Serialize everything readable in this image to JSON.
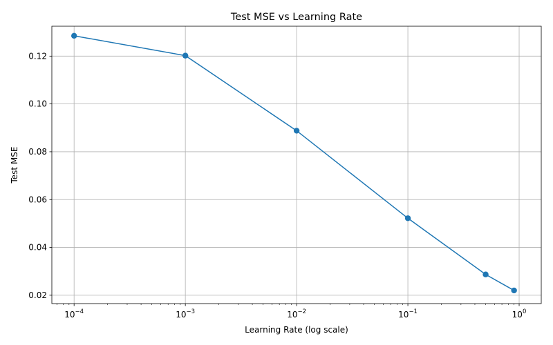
{
  "chart_data": {
    "type": "line",
    "title": "Test MSE vs Learning Rate",
    "xlabel": "Learning Rate (log scale)",
    "ylabel": "Test MSE",
    "xscale": "log",
    "xlim": [
      6.31e-05,
      1.58
    ],
    "ylim": [
      0.0165,
      0.1325
    ],
    "grid": true,
    "line_color": "#1f77b4",
    "marker": "circle",
    "x_ticks": [
      {
        "value": 0.0001,
        "base": "10",
        "exp": "−4"
      },
      {
        "value": 0.001,
        "base": "10",
        "exp": "−3"
      },
      {
        "value": 0.01,
        "base": "10",
        "exp": "−2"
      },
      {
        "value": 0.1,
        "base": "10",
        "exp": "−1"
      },
      {
        "value": 1,
        "base": "10",
        "exp": "0"
      }
    ],
    "y_ticks": [
      {
        "value": 0.02,
        "label": "0.02"
      },
      {
        "value": 0.04,
        "label": "0.04"
      },
      {
        "value": 0.06,
        "label": "0.06"
      },
      {
        "value": 0.08,
        "label": "0.08"
      },
      {
        "value": 0.1,
        "label": "0.10"
      },
      {
        "value": 0.12,
        "label": "0.12"
      }
    ],
    "series": [
      {
        "x": [
          0.0001,
          0.001,
          0.01,
          0.1,
          0.5,
          0.9
        ],
        "y": [
          0.1285,
          0.1202,
          0.0888,
          0.0522,
          0.0287,
          0.022
        ]
      }
    ]
  }
}
